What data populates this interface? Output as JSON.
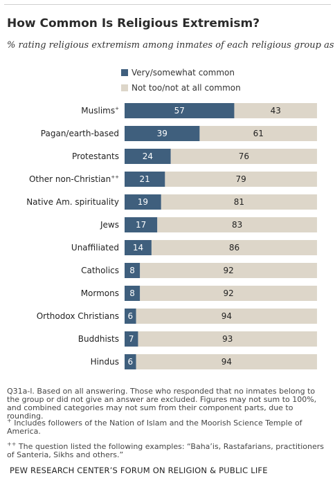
{
  "header": {
    "title": "How Common Is Religious Extremism?",
    "subtitle": "% rating religious extremism among inmates of each religious group as ..."
  },
  "colors": {
    "common": "#3f5f7d",
    "not_common": "#ddd6c9"
  },
  "chart_data": {
    "type": "bar",
    "orientation": "horizontal",
    "stacked": true,
    "categories": [
      "Muslims",
      "Pagan/earth-based",
      "Protestants",
      "Other non-Christian",
      "Native Am. spirituality",
      "Jews",
      "Unaffiliated",
      "Catholics",
      "Mormons",
      "Orthodox Christians",
      "Buddhists",
      "Hindus"
    ],
    "category_marks": [
      "+",
      "",
      "",
      "++",
      "",
      "",
      "",
      "",
      "",
      "",
      "",
      ""
    ],
    "series": [
      {
        "name": "Very/somewhat common",
        "values": [
          57,
          39,
          24,
          21,
          19,
          17,
          14,
          8,
          8,
          6,
          7,
          6
        ]
      },
      {
        "name": "Not too/not at all common",
        "values": [
          43,
          61,
          76,
          79,
          81,
          83,
          86,
          92,
          92,
          94,
          93,
          94
        ]
      }
    ],
    "xlim": [
      0,
      100
    ],
    "legend_position": "top",
    "grid": false
  },
  "notes": {
    "survey_note": "Q31a-l. Based on all answering. Those who responded that no inmates belong to the group or did not give an answer are excluded. Figures may not sum to 100%, and combined categories may not sum from their component parts, due to rounding.",
    "mark_1": "+",
    "note_1": " Includes followers of the Nation of Islam and the Moorish Science Temple of America.",
    "mark_2": "++",
    "note_2": " The question listed the following examples: “Baha’is, Rastafarians, practitioners of Santeria, Sikhs and others.”",
    "source": "PEW RESEARCH CENTER’S FORUM ON RELIGION & PUBLIC LIFE"
  }
}
